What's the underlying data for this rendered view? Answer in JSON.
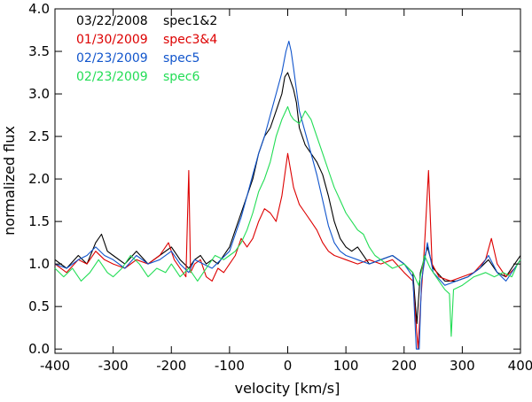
{
  "chart_data": {
    "type": "line",
    "title": "",
    "xlabel": "velocity [km/s]",
    "ylabel": "normalized flux",
    "xlim": [
      -400,
      400
    ],
    "ylim": [
      -0.05,
      4.0
    ],
    "x_ticks": [
      -400,
      -300,
      -200,
      -100,
      0,
      100,
      200,
      300,
      400
    ],
    "x_tick_labels": [
      "-400",
      "-300",
      "-200",
      "-100",
      "0",
      "100",
      "200",
      "300",
      "400"
    ],
    "y_ticks": [
      0.0,
      0.5,
      1.0,
      1.5,
      2.0,
      2.5,
      3.0,
      3.5,
      4.0
    ],
    "y_tick_labels": [
      "0.0",
      "0.5",
      "1.0",
      "1.5",
      "2.0",
      "2.5",
      "3.0",
      "3.5",
      "4.0"
    ],
    "grid": false,
    "legend_position": "top-left",
    "series": [
      {
        "name": "spec1&2",
        "date": "03/22/2008",
        "color": "#000000",
        "points": [
          [
            -400,
            1.05
          ],
          [
            -380,
            0.95
          ],
          [
            -360,
            1.1
          ],
          [
            -345,
            1.0
          ],
          [
            -330,
            1.25
          ],
          [
            -320,
            1.35
          ],
          [
            -310,
            1.15
          ],
          [
            -300,
            1.1
          ],
          [
            -280,
            1.0
          ],
          [
            -260,
            1.15
          ],
          [
            -240,
            1.0
          ],
          [
            -220,
            1.1
          ],
          [
            -200,
            1.2
          ],
          [
            -185,
            1.05
          ],
          [
            -170,
            0.95
          ],
          [
            -160,
            1.05
          ],
          [
            -150,
            1.1
          ],
          [
            -140,
            1.0
          ],
          [
            -130,
            1.05
          ],
          [
            -120,
            1.0
          ],
          [
            -110,
            1.1
          ],
          [
            -100,
            1.2
          ],
          [
            -90,
            1.4
          ],
          [
            -80,
            1.6
          ],
          [
            -70,
            1.8
          ],
          [
            -60,
            2.0
          ],
          [
            -50,
            2.3
          ],
          [
            -40,
            2.5
          ],
          [
            -30,
            2.6
          ],
          [
            -20,
            2.8
          ],
          [
            -10,
            3.0
          ],
          [
            -5,
            3.2
          ],
          [
            0,
            3.25
          ],
          [
            5,
            3.15
          ],
          [
            10,
            3.05
          ],
          [
            15,
            2.9
          ],
          [
            20,
            2.6
          ],
          [
            30,
            2.4
          ],
          [
            40,
            2.3
          ],
          [
            50,
            2.2
          ],
          [
            60,
            2.05
          ],
          [
            70,
            1.8
          ],
          [
            80,
            1.5
          ],
          [
            90,
            1.3
          ],
          [
            100,
            1.2
          ],
          [
            110,
            1.15
          ],
          [
            120,
            1.2
          ],
          [
            140,
            1.0
          ],
          [
            160,
            1.05
          ],
          [
            180,
            1.1
          ],
          [
            200,
            1.0
          ],
          [
            215,
            0.9
          ],
          [
            222,
            0.3
          ],
          [
            228,
            0.9
          ],
          [
            240,
            1.2
          ],
          [
            250,
            0.95
          ],
          [
            270,
            0.8
          ],
          [
            290,
            0.8
          ],
          [
            310,
            0.85
          ],
          [
            330,
            0.95
          ],
          [
            345,
            1.05
          ],
          [
            360,
            0.9
          ],
          [
            375,
            0.85
          ],
          [
            390,
            1.0
          ],
          [
            400,
            1.1
          ]
        ]
      },
      {
        "name": "spec3&4",
        "date": "01/30/2009",
        "color": "#dd0000",
        "points": [
          [
            -400,
            1.0
          ],
          [
            -380,
            0.9
          ],
          [
            -360,
            1.05
          ],
          [
            -345,
            1.0
          ],
          [
            -330,
            1.15
          ],
          [
            -315,
            1.05
          ],
          [
            -300,
            1.0
          ],
          [
            -280,
            0.95
          ],
          [
            -260,
            1.05
          ],
          [
            -240,
            1.0
          ],
          [
            -220,
            1.1
          ],
          [
            -205,
            1.25
          ],
          [
            -195,
            1.05
          ],
          [
            -185,
            0.95
          ],
          [
            -175,
            0.85
          ],
          [
            -170,
            2.1
          ],
          [
            -167,
            0.9
          ],
          [
            -160,
            1.0
          ],
          [
            -150,
            1.05
          ],
          [
            -140,
            0.85
          ],
          [
            -130,
            0.8
          ],
          [
            -120,
            0.95
          ],
          [
            -110,
            0.9
          ],
          [
            -100,
            1.0
          ],
          [
            -90,
            1.1
          ],
          [
            -80,
            1.3
          ],
          [
            -70,
            1.2
          ],
          [
            -60,
            1.3
          ],
          [
            -50,
            1.5
          ],
          [
            -40,
            1.65
          ],
          [
            -30,
            1.6
          ],
          [
            -20,
            1.5
          ],
          [
            -10,
            1.8
          ],
          [
            -5,
            2.05
          ],
          [
            0,
            2.3
          ],
          [
            5,
            2.1
          ],
          [
            10,
            1.9
          ],
          [
            20,
            1.7
          ],
          [
            30,
            1.6
          ],
          [
            40,
            1.5
          ],
          [
            50,
            1.4
          ],
          [
            60,
            1.25
          ],
          [
            70,
            1.15
          ],
          [
            80,
            1.1
          ],
          [
            100,
            1.05
          ],
          [
            120,
            1.0
          ],
          [
            140,
            1.05
          ],
          [
            160,
            1.0
          ],
          [
            180,
            1.05
          ],
          [
            200,
            0.9
          ],
          [
            215,
            0.8
          ],
          [
            224,
            0.0
          ],
          [
            228,
            0.5
          ],
          [
            235,
            1.2
          ],
          [
            242,
            2.1
          ],
          [
            248,
            1.0
          ],
          [
            260,
            0.85
          ],
          [
            280,
            0.8
          ],
          [
            300,
            0.85
          ],
          [
            320,
            0.9
          ],
          [
            340,
            1.05
          ],
          [
            350,
            1.3
          ],
          [
            360,
            1.0
          ],
          [
            375,
            0.85
          ],
          [
            390,
            0.95
          ],
          [
            400,
            1.05
          ]
        ]
      },
      {
        "name": "spec5",
        "date": "02/23/2009",
        "color": "#1155cc",
        "points": [
          [
            -400,
            1.0
          ],
          [
            -380,
            0.95
          ],
          [
            -360,
            1.05
          ],
          [
            -345,
            1.1
          ],
          [
            -330,
            1.2
          ],
          [
            -315,
            1.1
          ],
          [
            -300,
            1.05
          ],
          [
            -280,
            0.95
          ],
          [
            -260,
            1.1
          ],
          [
            -240,
            1.0
          ],
          [
            -220,
            1.05
          ],
          [
            -200,
            1.15
          ],
          [
            -185,
            1.0
          ],
          [
            -170,
            0.9
          ],
          [
            -160,
            1.05
          ],
          [
            -145,
            1.0
          ],
          [
            -130,
            0.95
          ],
          [
            -115,
            1.05
          ],
          [
            -100,
            1.15
          ],
          [
            -90,
            1.35
          ],
          [
            -80,
            1.55
          ],
          [
            -70,
            1.8
          ],
          [
            -60,
            2.05
          ],
          [
            -50,
            2.3
          ],
          [
            -40,
            2.5
          ],
          [
            -30,
            2.75
          ],
          [
            -20,
            3.0
          ],
          [
            -10,
            3.25
          ],
          [
            -3,
            3.5
          ],
          [
            2,
            3.62
          ],
          [
            6,
            3.5
          ],
          [
            10,
            3.3
          ],
          [
            15,
            3.05
          ],
          [
            20,
            2.8
          ],
          [
            30,
            2.55
          ],
          [
            40,
            2.3
          ],
          [
            50,
            2.05
          ],
          [
            60,
            1.75
          ],
          [
            70,
            1.45
          ],
          [
            80,
            1.25
          ],
          [
            90,
            1.15
          ],
          [
            100,
            1.1
          ],
          [
            120,
            1.05
          ],
          [
            140,
            1.0
          ],
          [
            160,
            1.05
          ],
          [
            180,
            1.1
          ],
          [
            200,
            1.0
          ],
          [
            215,
            0.85
          ],
          [
            221,
            0.0
          ],
          [
            226,
            0.0
          ],
          [
            230,
            0.8
          ],
          [
            240,
            1.25
          ],
          [
            250,
            0.9
          ],
          [
            270,
            0.75
          ],
          [
            290,
            0.8
          ],
          [
            310,
            0.85
          ],
          [
            330,
            0.95
          ],
          [
            345,
            1.1
          ],
          [
            360,
            0.9
          ],
          [
            375,
            0.8
          ],
          [
            390,
            0.95
          ],
          [
            400,
            1.05
          ]
        ]
      },
      {
        "name": "spec6",
        "date": "02/23/2009",
        "color": "#22dd55",
        "points": [
          [
            -400,
            0.95
          ],
          [
            -385,
            0.85
          ],
          [
            -370,
            0.95
          ],
          [
            -355,
            0.8
          ],
          [
            -340,
            0.9
          ],
          [
            -325,
            1.05
          ],
          [
            -310,
            0.9
          ],
          [
            -300,
            0.85
          ],
          [
            -285,
            0.95
          ],
          [
            -270,
            1.1
          ],
          [
            -255,
            1.0
          ],
          [
            -240,
            0.85
          ],
          [
            -225,
            0.95
          ],
          [
            -210,
            0.9
          ],
          [
            -200,
            1.0
          ],
          [
            -185,
            0.85
          ],
          [
            -170,
            0.95
          ],
          [
            -155,
            0.8
          ],
          [
            -140,
            0.95
          ],
          [
            -125,
            1.1
          ],
          [
            -110,
            1.05
          ],
          [
            -100,
            1.1
          ],
          [
            -90,
            1.15
          ],
          [
            -80,
            1.25
          ],
          [
            -70,
            1.4
          ],
          [
            -60,
            1.6
          ],
          [
            -50,
            1.85
          ],
          [
            -40,
            2.0
          ],
          [
            -30,
            2.2
          ],
          [
            -20,
            2.5
          ],
          [
            -10,
            2.7
          ],
          [
            0,
            2.85
          ],
          [
            5,
            2.75
          ],
          [
            10,
            2.7
          ],
          [
            20,
            2.65
          ],
          [
            30,
            2.8
          ],
          [
            40,
            2.7
          ],
          [
            50,
            2.5
          ],
          [
            60,
            2.3
          ],
          [
            70,
            2.1
          ],
          [
            80,
            1.9
          ],
          [
            90,
            1.75
          ],
          [
            100,
            1.6
          ],
          [
            110,
            1.5
          ],
          [
            120,
            1.4
          ],
          [
            130,
            1.35
          ],
          [
            140,
            1.2
          ],
          [
            150,
            1.1
          ],
          [
            160,
            1.05
          ],
          [
            180,
            0.95
          ],
          [
            200,
            1.0
          ],
          [
            215,
            0.9
          ],
          [
            225,
            0.75
          ],
          [
            235,
            1.1
          ],
          [
            245,
            0.95
          ],
          [
            260,
            0.8
          ],
          [
            270,
            0.7
          ],
          [
            278,
            0.65
          ],
          [
            281,
            0.15
          ],
          [
            285,
            0.7
          ],
          [
            300,
            0.75
          ],
          [
            320,
            0.85
          ],
          [
            340,
            0.9
          ],
          [
            355,
            0.85
          ],
          [
            370,
            0.9
          ],
          [
            385,
            0.85
          ],
          [
            395,
            1.0
          ],
          [
            400,
            1.05
          ]
        ]
      }
    ]
  }
}
